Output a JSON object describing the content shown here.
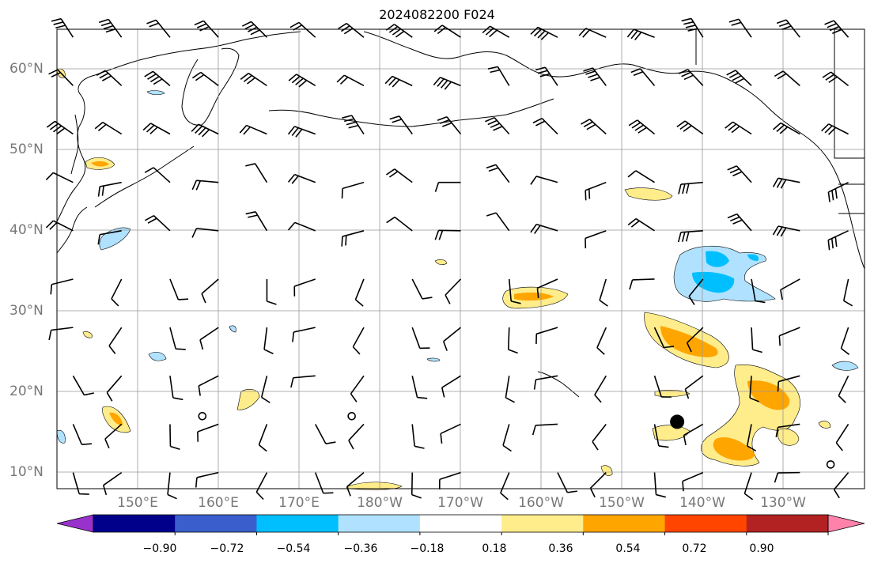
{
  "title": "2024082200 F024",
  "latitude_labels": [
    "60°N",
    "50°N",
    "40°N",
    "30°N",
    "20°N",
    "10°N"
  ],
  "longitude_labels": [
    "150°E",
    "160°E",
    "170°E",
    "180°W",
    "170°W",
    "160°W",
    "150°W",
    "140°W",
    "130°W"
  ],
  "colorbar": {
    "tick_labels": [
      "−0.90",
      "−0.72",
      "−0.54",
      "−0.36",
      "−0.18",
      "0.18",
      "0.36",
      "0.54",
      "0.72",
      "0.90"
    ],
    "colors": [
      "#9932cc",
      "#00008b",
      "#3a5fcd",
      "#00bfff",
      "#b0e2ff",
      "#ffffff",
      "#ffec8b",
      "#ffa500",
      "#ff4500",
      "#b22222",
      "#ff82ab"
    ]
  },
  "map": {
    "lat_range": [
      8,
      65
    ],
    "lon_range_east": [
      140,
      240
    ],
    "grid": true,
    "storm_marker": {
      "lat": 16.3,
      "lon_east": 216.8,
      "label": ""
    },
    "calm_circles": [
      {
        "lat": 17,
        "lon_east": 158
      },
      {
        "lat": 17,
        "lon_east": 176.5
      },
      {
        "lat": 11,
        "lon_east": 235.8
      }
    ]
  }
}
